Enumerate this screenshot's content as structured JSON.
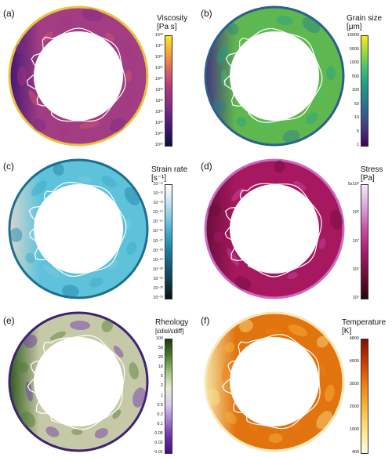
{
  "panels": [
    {
      "label": "(a)",
      "title_line1": "Viscosity",
      "title_line2": "[Pa s]",
      "ticks": [
        "10²⁸",
        "10²⁷",
        "10²⁶",
        "10²⁵",
        "10²⁴",
        "10²³",
        "10²²",
        "10²¹",
        "10²⁰",
        "10¹⁹",
        "10¹⁸"
      ],
      "colors": [
        "#f9e721",
        "#f3a03a",
        "#d6596a",
        "#a7367e",
        "#782c86",
        "#431875",
        "#120c3a"
      ],
      "ring_base": "#a33d83",
      "outer_rim": "#e8c340"
    },
    {
      "label": "(b)",
      "title_line1": "Grain size",
      "title_line2": "[μm]",
      "ticks": [
        "10000",
        "5000",
        "1000",
        "500",
        "100",
        "50",
        "10",
        "5",
        "1"
      ],
      "colors": [
        "#fde725",
        "#9fda3a",
        "#4ac16d",
        "#1fa187",
        "#277f8e",
        "#365c8d",
        "#46327e",
        "#440154"
      ],
      "ring_base": "#5fb84f",
      "outer_rim": "#2c5f8a"
    },
    {
      "label": "(c)",
      "title_line1": "Strain rate",
      "title_line2": "[s⁻¹]",
      "ticks": [
        "10⁻¹¹",
        "10⁻¹²",
        "10⁻¹³",
        "10⁻¹⁴",
        "10⁻¹⁵",
        "10⁻¹⁶",
        "10⁻¹⁷",
        "10⁻¹⁸",
        "10⁻¹⁹",
        "10⁻²⁰",
        "10⁻²¹",
        "10⁻²²",
        "10⁻²³"
      ],
      "colors": [
        "#ffffff",
        "#c6e8f1",
        "#7fcbe0",
        "#3aa9c8",
        "#1d7fa3",
        "#175a76",
        "#103a47",
        "#0a1510"
      ],
      "ring_base": "#5ec3da",
      "outer_rim": "#1c6f8f"
    },
    {
      "label": "(d)",
      "title_line1": "Stress",
      "title_line2": "[Pa]",
      "ticks": [
        "5x10⁸",
        "10⁸",
        "10⁷",
        "10⁶",
        "10⁵"
      ],
      "colors": [
        "#f5e8f5",
        "#dba4d6",
        "#c84aa3",
        "#a31a6a",
        "#6a0e3a",
        "#2a0410"
      ],
      "ring_base": "#a8185f",
      "outer_rim": "#c96bc1"
    },
    {
      "label": "(e)",
      "title_line1": "Rheology",
      "title_line2": "[ε̇disl/ε̇diff]",
      "ticks": [
        "100",
        "50",
        "20",
        "10",
        "5",
        "2",
        "1",
        "0.5",
        "0.2",
        "0.1",
        "0.05",
        "0.02",
        "0.01"
      ],
      "colors": [
        "#1f3b10",
        "#4e7a2b",
        "#a2c27a",
        "#e5ecd8",
        "#d8c9ea",
        "#a27cd0",
        "#6b2fa8",
        "#44117e"
      ],
      "ring_base": "#c6c9a8",
      "outer_rim": "#3f2370"
    },
    {
      "label": "(f)",
      "title_line1": "Temperature",
      "title_line2": "[K]",
      "ticks": [
        "4800",
        "4000",
        "3000",
        "2000",
        "1000",
        "400"
      ],
      "colors": [
        "#7e1000",
        "#c93a06",
        "#f07f12",
        "#f7b83c",
        "#fbe58a",
        "#fffbe3"
      ],
      "ring_base": "#e2740f",
      "outer_rim": "#f6e8b8"
    }
  ]
}
